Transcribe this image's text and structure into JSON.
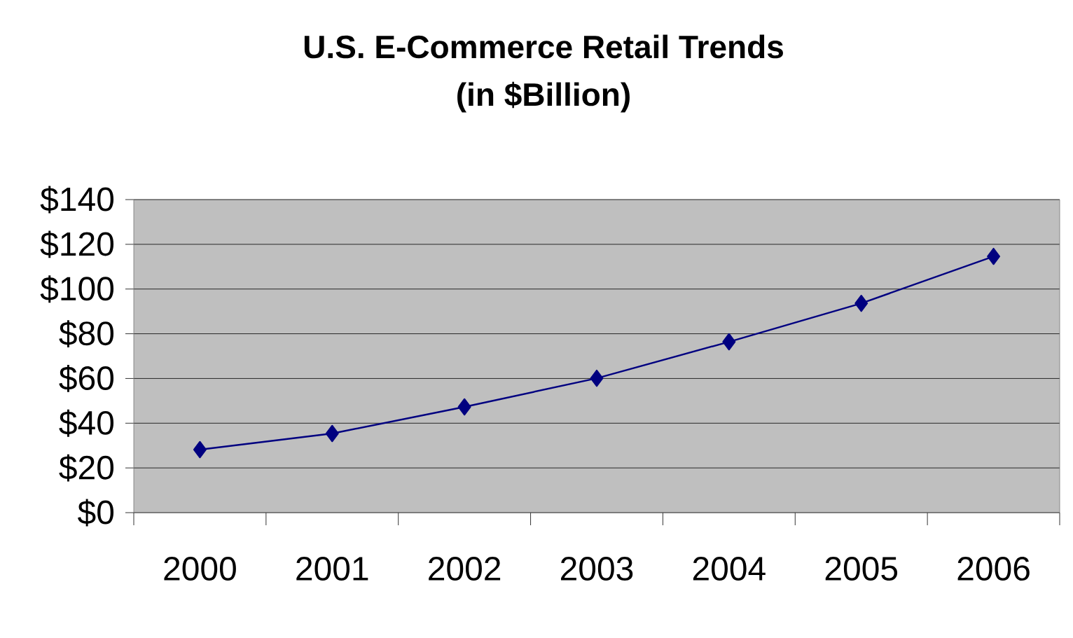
{
  "chart_data": {
    "type": "line",
    "title": "U.S. E-Commerce Retail Trends\n(in $Billion)",
    "categories": [
      "2000",
      "2001",
      "2002",
      "2003",
      "2004",
      "2005",
      "2006"
    ],
    "series": [
      {
        "color": "#000080",
        "values": [
          28.2,
          35.4,
          47.3,
          60.1,
          76.4,
          93.6,
          114.6
        ]
      }
    ],
    "ylim": [
      0,
      140
    ],
    "yticks": [
      {
        "value": 0,
        "label": "$0"
      },
      {
        "value": 20,
        "label": "$20"
      },
      {
        "value": 40,
        "label": "$40"
      },
      {
        "value": 60,
        "label": "$60"
      },
      {
        "value": 80,
        "label": "$80"
      },
      {
        "value": 100,
        "label": "$100"
      },
      {
        "value": 120,
        "label": "$120"
      },
      {
        "value": 140,
        "label": "$140"
      }
    ],
    "grid": "y",
    "marker": "diamond",
    "line_style": "solid"
  }
}
